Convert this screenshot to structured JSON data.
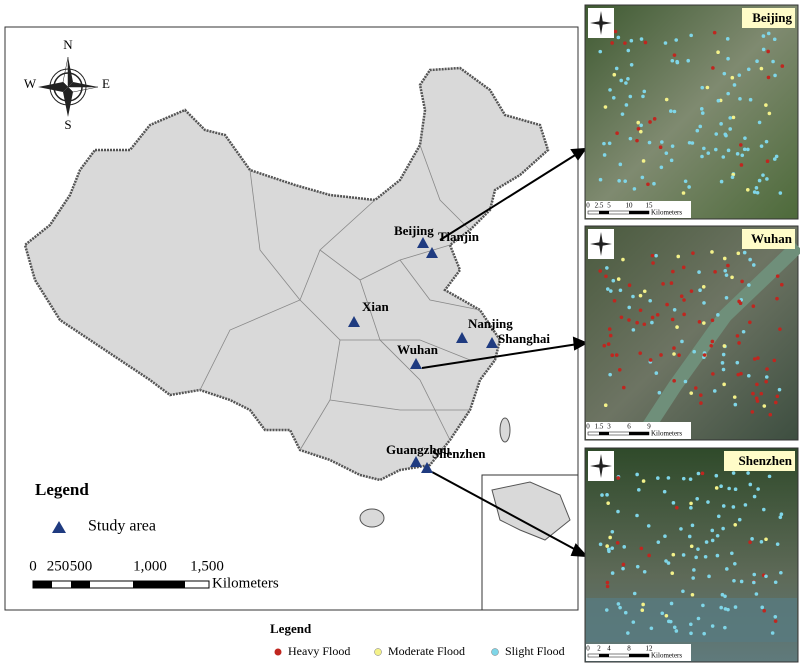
{
  "main_map": {
    "compass": {
      "n": "N",
      "s": "S",
      "w": "W",
      "e": "E"
    },
    "cities": [
      {
        "label": "Beijing"
      },
      {
        "label": "Tianjin"
      },
      {
        "label": "Xian"
      },
      {
        "label": "Nanjing"
      },
      {
        "label": "Shanghai"
      },
      {
        "label": "Wuhan"
      },
      {
        "label": "Guangzhou"
      },
      {
        "label": "Shenzhen"
      }
    ],
    "legend": {
      "title": "Legend",
      "items": [
        {
          "label": "Study area"
        }
      ]
    },
    "scale_bar": {
      "ticks": [
        "0",
        "250",
        "500",
        "1,000",
        "1,500"
      ],
      "unit": "Kilometers"
    }
  },
  "panels": [
    {
      "title": "Beijing",
      "scale_bar": {
        "ticks": [
          "0",
          "2.5",
          "5",
          "10",
          "15"
        ],
        "unit": "Kilometers"
      }
    },
    {
      "title": "Wuhan",
      "scale_bar": {
        "ticks": [
          "0",
          "1.5",
          "3",
          "6",
          "9"
        ],
        "unit": "Kilometers"
      }
    },
    {
      "title": "Shenzhen",
      "scale_bar": {
        "ticks": [
          "0",
          "2",
          "4",
          "8",
          "12"
        ],
        "unit": "Kilometers"
      }
    }
  ],
  "flood_legend": {
    "title": "Legend",
    "items": [
      {
        "label": "Heavy Flood"
      },
      {
        "label": "Moderate Flood"
      },
      {
        "label": "Slight Flood"
      }
    ]
  }
}
